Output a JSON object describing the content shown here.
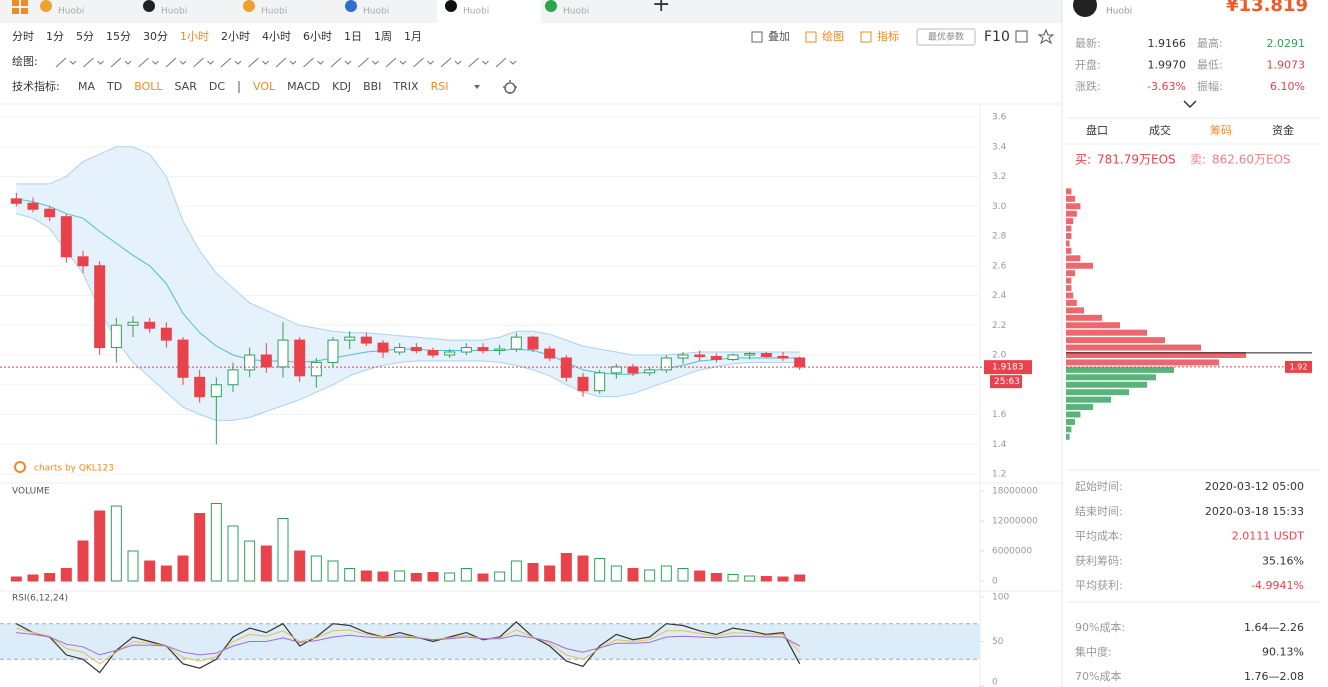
{
  "tabs": [
    {
      "exchange": "Huobi"
    },
    {
      "exchange": "Huobi"
    },
    {
      "exchange": "Huobi"
    },
    {
      "exchange": "Huobi"
    },
    {
      "exchange": "Huobi"
    },
    {
      "exchange": "Huobi"
    }
  ],
  "active_tab": 4,
  "toolbar": {
    "intervals": [
      "分时",
      "1分",
      "5分",
      "15分",
      "30分",
      "1小时",
      "2小时",
      "4小时",
      "6小时",
      "1日",
      "1周",
      "1月"
    ],
    "active_interval": 5,
    "tools": [
      "叠加",
      "绘图",
      "指标"
    ],
    "optimal_button": "最优参数",
    "f10": "F10",
    "draw_label": "绘图:",
    "indicator_label": "技术指标:",
    "indicators": [
      {
        "label": "MA",
        "active": false
      },
      {
        "label": "TD",
        "active": false
      },
      {
        "label": "BOLL",
        "active": true
      },
      {
        "label": "SAR",
        "active": false
      },
      {
        "label": "DC",
        "active": false
      },
      {
        "label": "VOL",
        "active": true
      },
      {
        "label": "MACD",
        "active": false
      },
      {
        "label": "KDJ",
        "active": false
      },
      {
        "label": "BBI",
        "active": false
      },
      {
        "label": "TRIX",
        "active": false
      },
      {
        "label": "RSI",
        "active": true
      }
    ]
  },
  "chart_data": [
    {
      "type": "candlestick",
      "ylim": [
        1.2,
        3.6
      ],
      "yticks": [
        1.2,
        1.4,
        1.6,
        1.8,
        {
          "value": 2,
          "label": "2.0"
        },
        2.2,
        2.4,
        2.6,
        2.8,
        {
          "value": 3,
          "label": "3.0"
        },
        3.2,
        3.4,
        3.6
      ],
      "grid": true,
      "up_color": "#2fa15a",
      "down_color": "#e8424a",
      "open": [
        3.05,
        3.02,
        2.98,
        2.93,
        2.66,
        2.6,
        2.05,
        2.2,
        2.22,
        2.18,
        2.1,
        1.85,
        1.72,
        1.8,
        1.9,
        2.0,
        1.92,
        2.1,
        1.86,
        1.95,
        2.1,
        2.12,
        2.08,
        2.02,
        2.05,
        2.03,
        2.0,
        2.02,
        2.05,
        2.03,
        2.04,
        2.12,
        2.04,
        1.98,
        1.85,
        1.76,
        1.88,
        1.92,
        1.88,
        1.9,
        1.98,
        2.0,
        1.99,
        1.97,
        2.0,
        2.01,
        1.99,
        1.98
      ],
      "high": [
        3.09,
        3.06,
        3.0,
        2.95,
        2.7,
        2.63,
        2.25,
        2.26,
        2.25,
        2.22,
        2.12,
        1.9,
        1.85,
        1.95,
        2.05,
        2.08,
        2.22,
        2.12,
        1.98,
        2.12,
        2.16,
        2.15,
        2.1,
        2.08,
        2.08,
        2.05,
        2.04,
        2.08,
        2.08,
        2.07,
        2.15,
        2.13,
        2.06,
        2.0,
        1.88,
        1.9,
        1.94,
        1.94,
        1.92,
        2.0,
        2.02,
        2.03,
        2.01,
        2.01,
        2.02,
        2.02,
        2.02,
        1.99
      ],
      "low": [
        3.0,
        2.96,
        2.9,
        2.62,
        2.55,
        2.0,
        1.95,
        2.12,
        2.15,
        2.05,
        1.8,
        1.68,
        1.4,
        1.75,
        1.85,
        1.88,
        1.85,
        1.82,
        1.78,
        1.92,
        2.04,
        2.06,
        1.98,
        2.0,
        2.01,
        1.98,
        1.98,
        2.0,
        2.01,
        2.0,
        2.02,
        2.02,
        1.96,
        1.82,
        1.72,
        1.74,
        1.84,
        1.86,
        1.86,
        1.88,
        1.94,
        1.96,
        1.95,
        1.96,
        1.97,
        1.98,
        1.96,
        1.9
      ],
      "close": [
        3.02,
        2.98,
        2.93,
        2.66,
        2.6,
        2.05,
        2.2,
        2.22,
        2.18,
        2.1,
        1.85,
        1.72,
        1.8,
        1.9,
        2.0,
        1.92,
        2.1,
        1.86,
        1.95,
        2.1,
        2.12,
        2.08,
        2.02,
        2.05,
        2.03,
        2.0,
        2.02,
        2.05,
        2.03,
        2.04,
        2.12,
        2.04,
        1.98,
        1.85,
        1.76,
        1.88,
        1.92,
        1.88,
        1.9,
        1.98,
        2.0,
        1.99,
        1.97,
        2.0,
        2.01,
        1.99,
        1.98,
        1.92
      ],
      "bands": {
        "upper": [
          3.15,
          3.15,
          3.15,
          3.2,
          3.3,
          3.35,
          3.4,
          3.4,
          3.35,
          3.2,
          2.9,
          2.7,
          2.55,
          2.45,
          2.35,
          2.3,
          2.25,
          2.2,
          2.18,
          2.16,
          2.15,
          2.15,
          2.14,
          2.13,
          2.12,
          2.11,
          2.1,
          2.1,
          2.1,
          2.12,
          2.16,
          2.16,
          2.14,
          2.1,
          2.06,
          2.04,
          2.02,
          2.0,
          2.0,
          2.0,
          2.01,
          2.02,
          2.02,
          2.02,
          2.02,
          2.02,
          2.02,
          2.02
        ],
        "mid": [
          3.05,
          3.03,
          3.0,
          2.95,
          2.92,
          2.83,
          2.75,
          2.67,
          2.6,
          2.48,
          2.28,
          2.15,
          2.06,
          2.0,
          1.97,
          1.96,
          1.96,
          1.95,
          1.96,
          1.98,
          2.0,
          2.02,
          2.03,
          2.04,
          2.04,
          2.03,
          2.03,
          2.03,
          2.03,
          2.03,
          2.04,
          2.03,
          2.0,
          1.95,
          1.9,
          1.88,
          1.87,
          1.87,
          1.89,
          1.91,
          1.93,
          1.96,
          1.97,
          1.98,
          1.98,
          1.98,
          1.98,
          1.98
        ],
        "lower": [
          2.95,
          2.92,
          2.85,
          2.7,
          2.55,
          2.3,
          2.1,
          1.95,
          1.85,
          1.75,
          1.65,
          1.6,
          1.56,
          1.56,
          1.58,
          1.62,
          1.66,
          1.7,
          1.75,
          1.8,
          1.86,
          1.9,
          1.93,
          1.95,
          1.96,
          1.96,
          1.96,
          1.96,
          1.96,
          1.95,
          1.93,
          1.9,
          1.86,
          1.8,
          1.75,
          1.72,
          1.72,
          1.74,
          1.78,
          1.82,
          1.86,
          1.9,
          1.92,
          1.94,
          1.95,
          1.95,
          1.95,
          1.95
        ]
      },
      "band_fill": "#dcecf9",
      "band_line": "#a9d3f0",
      "mid_color": "#4fc1c9",
      "last_price": 1.9183,
      "countdown": "25:63",
      "watermark": "charts by QKL123"
    },
    {
      "type": "bar",
      "title": "VOLUME",
      "ylim": [
        0,
        18000000
      ],
      "yticks": [
        0,
        6000000,
        12000000,
        18000000
      ],
      "values": [
        800000,
        1200000,
        1500000,
        2500000,
        8000000,
        14000000,
        15000000,
        6000000,
        4000000,
        3000000,
        5000000,
        13500000,
        15500000,
        11000000,
        8000000,
        7000000,
        12500000,
        6000000,
        5000000,
        4000000,
        2500000,
        2000000,
        1800000,
        2000000,
        1500000,
        1700000,
        1600000,
        2500000,
        1400000,
        1800000,
        4000000,
        3500000,
        3000000,
        5500000,
        5000000,
        4500000,
        3000000,
        2500000,
        2200000,
        3000000,
        2500000,
        2000000,
        1500000,
        1300000,
        1000000,
        900000,
        800000,
        1200000
      ],
      "up_color": "#2fa15a",
      "down_color": "#e8424a"
    },
    {
      "type": "line",
      "title": "RSI(6,12,24)",
      "ylim": [
        0,
        100
      ],
      "yticks": [
        0,
        50,
        100
      ],
      "band": [
        30,
        70
      ],
      "band_fill": "#dcecf9",
      "series": [
        {
          "color": "#333333",
          "values": [
            70,
            60,
            55,
            35,
            30,
            15,
            40,
            55,
            50,
            45,
            25,
            20,
            30,
            55,
            65,
            60,
            70,
            45,
            55,
            70,
            68,
            60,
            55,
            60,
            55,
            50,
            55,
            60,
            52,
            55,
            72,
            55,
            45,
            28,
            22,
            45,
            58,
            52,
            55,
            70,
            68,
            62,
            58,
            65,
            62,
            58,
            60,
            25
          ]
        },
        {
          "color": "#e8c04a",
          "values": [
            65,
            60,
            56,
            42,
            38,
            25,
            38,
            50,
            48,
            45,
            32,
            28,
            33,
            50,
            58,
            56,
            62,
            50,
            54,
            62,
            63,
            58,
            55,
            57,
            55,
            52,
            54,
            57,
            53,
            54,
            63,
            55,
            48,
            35,
            30,
            42,
            52,
            50,
            52,
            62,
            62,
            59,
            56,
            60,
            59,
            57,
            58,
            38
          ]
        },
        {
          "color": "#9b6fd6",
          "values": [
            60,
            58,
            55,
            47,
            44,
            35,
            40,
            46,
            46,
            45,
            38,
            35,
            37,
            45,
            50,
            50,
            54,
            49,
            51,
            55,
            57,
            55,
            54,
            55,
            54,
            52,
            53,
            55,
            53,
            53,
            57,
            54,
            50,
            42,
            38,
            43,
            48,
            48,
            49,
            55,
            56,
            55,
            54,
            56,
            56,
            55,
            55,
            45
          ]
        }
      ]
    },
    {
      "type": "bar",
      "orientation": "horizontal",
      "ylim": [
        1.2,
        3.6
      ],
      "xlim": [
        0,
        100
      ],
      "y": [
        3.1,
        3.05,
        3.0,
        2.95,
        2.9,
        2.85,
        2.8,
        2.75,
        2.7,
        2.65,
        2.6,
        2.55,
        2.5,
        2.45,
        2.4,
        2.35,
        2.3,
        2.25,
        2.2,
        2.15,
        2.1,
        2.05,
        2.0,
        1.95,
        1.9,
        1.85,
        1.8,
        1.75,
        1.7,
        1.65,
        1.6,
        1.55,
        1.5,
        1.45
      ],
      "values": [
        3,
        5,
        8,
        6,
        4,
        3,
        3,
        2,
        3,
        8,
        15,
        5,
        3,
        3,
        4,
        6,
        10,
        20,
        30,
        45,
        55,
        75,
        100,
        85,
        60,
        50,
        45,
        35,
        25,
        15,
        8,
        5,
        3,
        2
      ],
      "above_color": "#e8424a",
      "below_color": "#2fa15a",
      "marker_price": 1.92
    }
  ],
  "right_panel": {
    "exchange": "Huobi",
    "price": "¥13.819",
    "stats": [
      [
        {
          "label": "最新:",
          "value": "1.9166",
          "color": "#333"
        },
        {
          "label": "最高:",
          "value": "2.0291",
          "color": "#2fa15a"
        }
      ],
      [
        {
          "label": "开盘:",
          "value": "1.9970",
          "color": "#333"
        },
        {
          "label": "最低:",
          "value": "1.9073",
          "color": "#e8424a"
        }
      ],
      [
        {
          "label": "涨跌:",
          "value": "-3.63%",
          "color": "#e8424a"
        },
        {
          "label": "振幅:",
          "value": "6.10%",
          "color": "#e8424a"
        }
      ]
    ],
    "tabs": [
      "盘口",
      "成交",
      "筹码",
      "资金"
    ],
    "active_tab": 2,
    "buy": {
      "label": "买:",
      "value": "781.79万EOS"
    },
    "sell": {
      "label": "卖:",
      "value": "862.60万EOS"
    },
    "summary": [
      {
        "label": "起始时间:",
        "value": "2020-03-12 05:00",
        "color": "#333"
      },
      {
        "label": "结束时间:",
        "value": "2020-03-18 15:33",
        "color": "#333"
      },
      {
        "label": "平均成本:",
        "value": "2.0111 USDT",
        "color": "#e8424a"
      },
      {
        "label": "获利筹码:",
        "value": "35.16%",
        "color": "#333"
      },
      {
        "label": "平均获利:",
        "value": "-4.9941%",
        "color": "#e8424a"
      }
    ],
    "ranges": [
      {
        "label": "90%成本:",
        "value": "1.64—2.26"
      },
      {
        "label": "集中度:",
        "value": "90.13%"
      },
      {
        "label": "70%成本",
        "value": "1.76—2.08"
      }
    ]
  }
}
